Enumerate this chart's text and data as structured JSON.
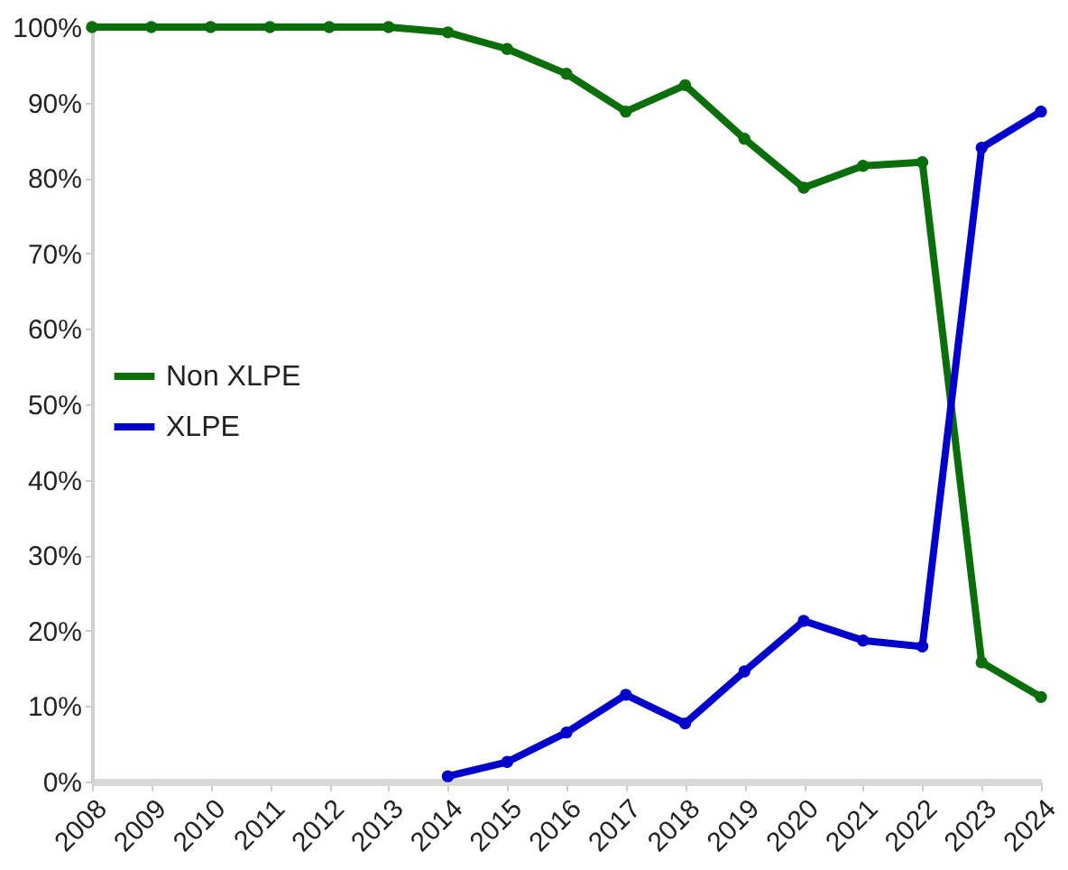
{
  "chart_data": {
    "type": "line",
    "categories": [
      "2008",
      "2009",
      "2010",
      "2011",
      "2012",
      "2013",
      "2014",
      "2015",
      "2016",
      "2017",
      "2018",
      "2019",
      "2020",
      "2021",
      "2022",
      "2023",
      "2024"
    ],
    "series": [
      {
        "name": "Non XLPE",
        "color": "#0a6e0a",
        "values": [
          100,
          100,
          100,
          100,
          100,
          100,
          99.3,
          97.1,
          93.8,
          88.8,
          92.3,
          85.2,
          78.7,
          81.6,
          82.1,
          15.8,
          11.2
        ]
      },
      {
        "name": "XLPE",
        "color": "#0000cc",
        "values": [
          null,
          null,
          null,
          null,
          null,
          null,
          0.7,
          2.6,
          6.5,
          11.5,
          7.7,
          14.6,
          21.3,
          18.7,
          17.9,
          84.0,
          88.8
        ]
      }
    ],
    "ylim": [
      0,
      100
    ],
    "yticks": [
      {
        "value": 0,
        "label": "0%"
      },
      {
        "value": 10,
        "label": "10%"
      },
      {
        "value": 20,
        "label": "20%"
      },
      {
        "value": 30,
        "label": "30%"
      },
      {
        "value": 40,
        "label": "40%"
      },
      {
        "value": 50,
        "label": "50%"
      },
      {
        "value": 60,
        "label": "60%"
      },
      {
        "value": 70,
        "label": "70%"
      },
      {
        "value": 80,
        "label": "80%"
      },
      {
        "value": 90,
        "label": "90%"
      },
      {
        "value": 100,
        "label": "100%"
      }
    ],
    "grid": false,
    "legend": "left",
    "marker": "circle",
    "line_style": "solid"
  }
}
